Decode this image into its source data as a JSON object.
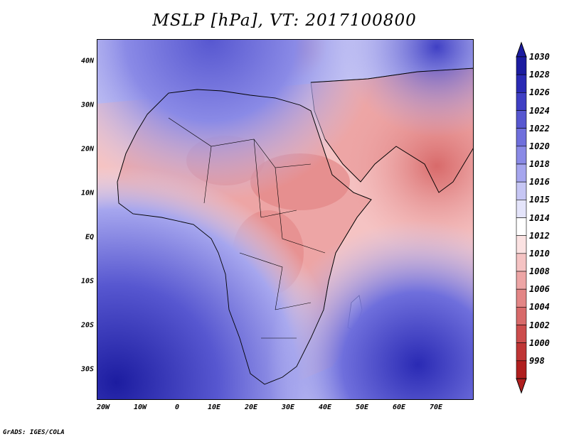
{
  "title": "MSLP [hPa], VT: 2017100800",
  "footer": "GrADS: IGES/COLA",
  "lat_labels": [
    "40N",
    "30N",
    "20N",
    "10N",
    "EQ",
    "10S",
    "20S",
    "30S"
  ],
  "lon_labels": [
    "20W",
    "10W",
    "0",
    "10E",
    "20E",
    "30E",
    "40E",
    "50E",
    "60E",
    "70E"
  ],
  "colorbar": {
    "labels": [
      "1030",
      "1028",
      "1026",
      "1024",
      "1022",
      "1020",
      "1018",
      "1016",
      "1015",
      "1014",
      "1012",
      "1010",
      "1008",
      "1006",
      "1004",
      "1002",
      "1000",
      "998"
    ],
    "colors": [
      "#1c1ca0",
      "#2a2ab4",
      "#3f3fc4",
      "#5757d0",
      "#6f6fdc",
      "#8a8ae6",
      "#a6a6ee",
      "#c6c6f4",
      "#e4e4fa",
      "#ffffff",
      "#fbe2e2",
      "#f5c3c3",
      "#eda5a5",
      "#e38686",
      "#d86a6a",
      "#cc4d4d",
      "#bf3535",
      "#b01f1f"
    ]
  },
  "colors": {
    "ocean_high": "#2a2ab4",
    "land_low": "#e38686"
  }
}
